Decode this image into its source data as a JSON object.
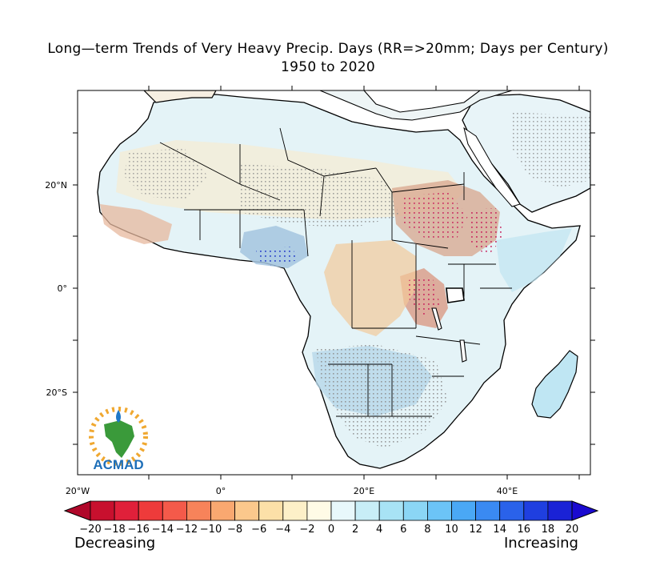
{
  "title_line1": "Long—term Trends of Very Heavy Precip. Days (RR=>20mm; Days per Century)",
  "title_line2": "1950 to 2020",
  "map": {
    "lat_labels": [
      "20°N",
      "0°",
      "20°S"
    ],
    "lon_labels": [
      "20°W",
      "0°",
      "20°E",
      "40°E"
    ],
    "logo_text": "ACMAD",
    "colors": {
      "land_base": "#e6f4f8",
      "stipple": "#8c8c8c"
    }
  },
  "colorbar": {
    "labels": [
      "−20",
      "−18",
      "−16",
      "−14",
      "−12",
      "−10",
      "−8",
      "−6",
      "−4",
      "−2",
      "0",
      "2",
      "4",
      "6",
      "8",
      "10",
      "12",
      "14",
      "16",
      "18",
      "20"
    ],
    "colors": [
      "#c8102e",
      "#e0203a",
      "#ee3b3b",
      "#f45a4a",
      "#f7835a",
      "#f9a870",
      "#fbc88c",
      "#fce0a8",
      "#fdf0c8",
      "#fffbe6",
      "#e8f8fb",
      "#c8eef7",
      "#a8e3f5",
      "#8bd6f5",
      "#6cc4f7",
      "#4aa8f5",
      "#3a8af2",
      "#2a62ea",
      "#1f3fe0",
      "#1a22d6"
    ],
    "low_word": "Decreasing",
    "high_word": "Increasing"
  }
}
